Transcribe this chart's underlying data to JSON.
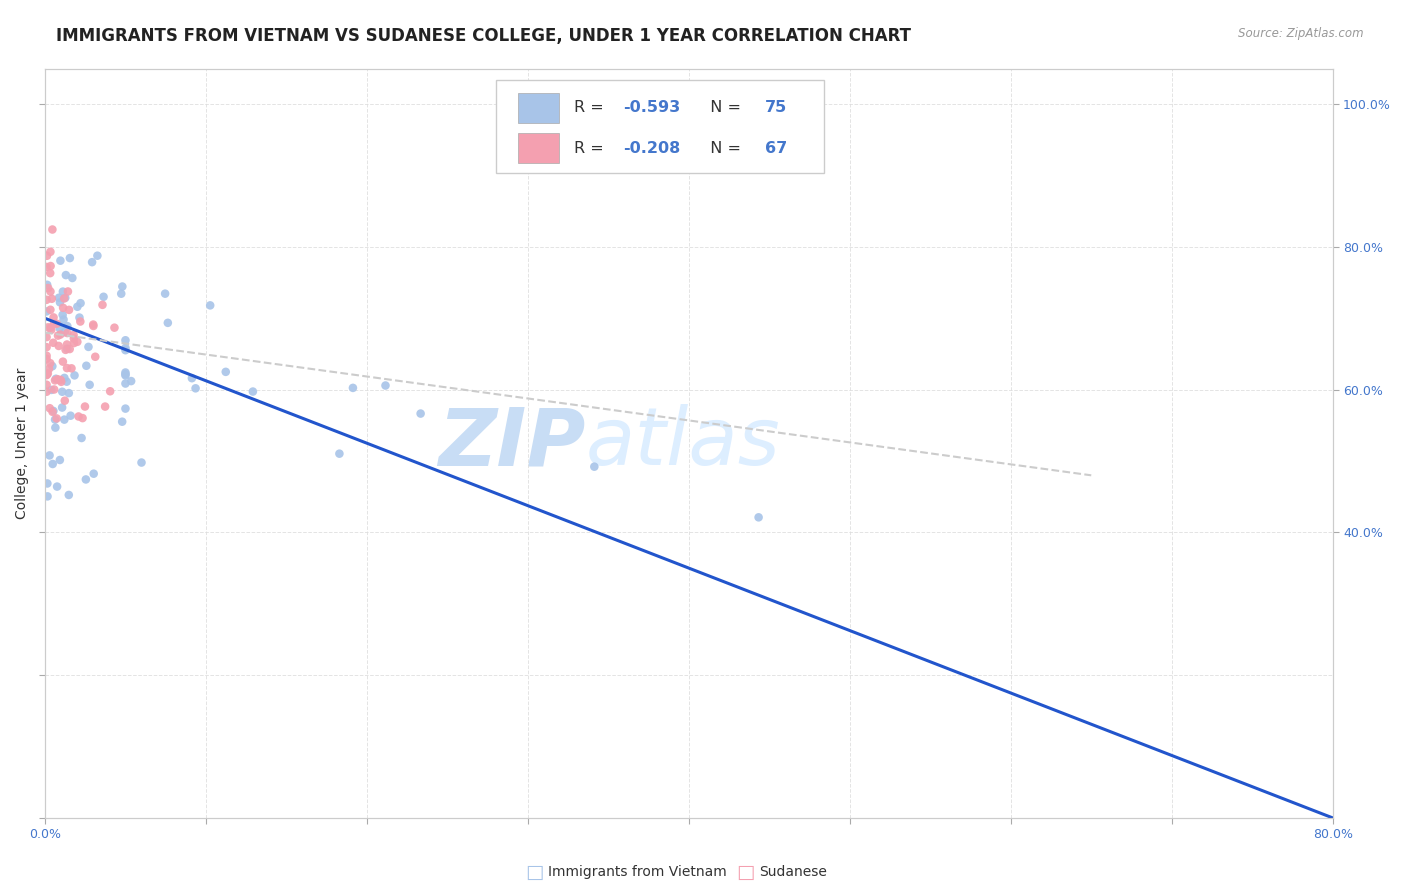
{
  "title": "IMMIGRANTS FROM VIETNAM VS SUDANESE COLLEGE, UNDER 1 YEAR CORRELATION CHART",
  "source": "Source: ZipAtlas.com",
  "ylabel": "College, Under 1 year",
  "bottom_legend": [
    "Immigrants from Vietnam",
    "Sudanese"
  ],
  "vietnam_color": "#a8c4e8",
  "sudanese_color": "#f4a0b0",
  "vietnam_trendline_color": "#2255cc",
  "sudanese_trendline_color": "#cccccc",
  "background_color": "#ffffff",
  "grid_color": "#dddddd",
  "watermark_zip": "ZIP",
  "watermark_atlas": "atlas",
  "watermark_color": "#ddeeff",
  "xlim": [
    0.0,
    0.8
  ],
  "ylim": [
    0.0,
    1.05
  ],
  "right_yticks": [
    0.4,
    0.6,
    0.8,
    1.0
  ],
  "right_yticklabels": [
    "40.0%",
    "60.0%",
    "80.0%",
    "100.0%"
  ],
  "xtick_positions": [
    0.0,
    0.1,
    0.2,
    0.3,
    0.4,
    0.5,
    0.6,
    0.7,
    0.8
  ],
  "vietnam_line_x": [
    0.0,
    0.8
  ],
  "vietnam_line_y": [
    0.7,
    0.0
  ],
  "sudan_line_x": [
    0.0,
    0.65
  ],
  "sudan_line_y": [
    0.68,
    0.48
  ],
  "r_vietnam": "-0.593",
  "n_vietnam": "75",
  "r_sudan": "-0.208",
  "n_sudan": "67",
  "title_fontsize": 12,
  "axis_label_fontsize": 10,
  "tick_fontsize": 9,
  "accent_color": "#4477cc"
}
